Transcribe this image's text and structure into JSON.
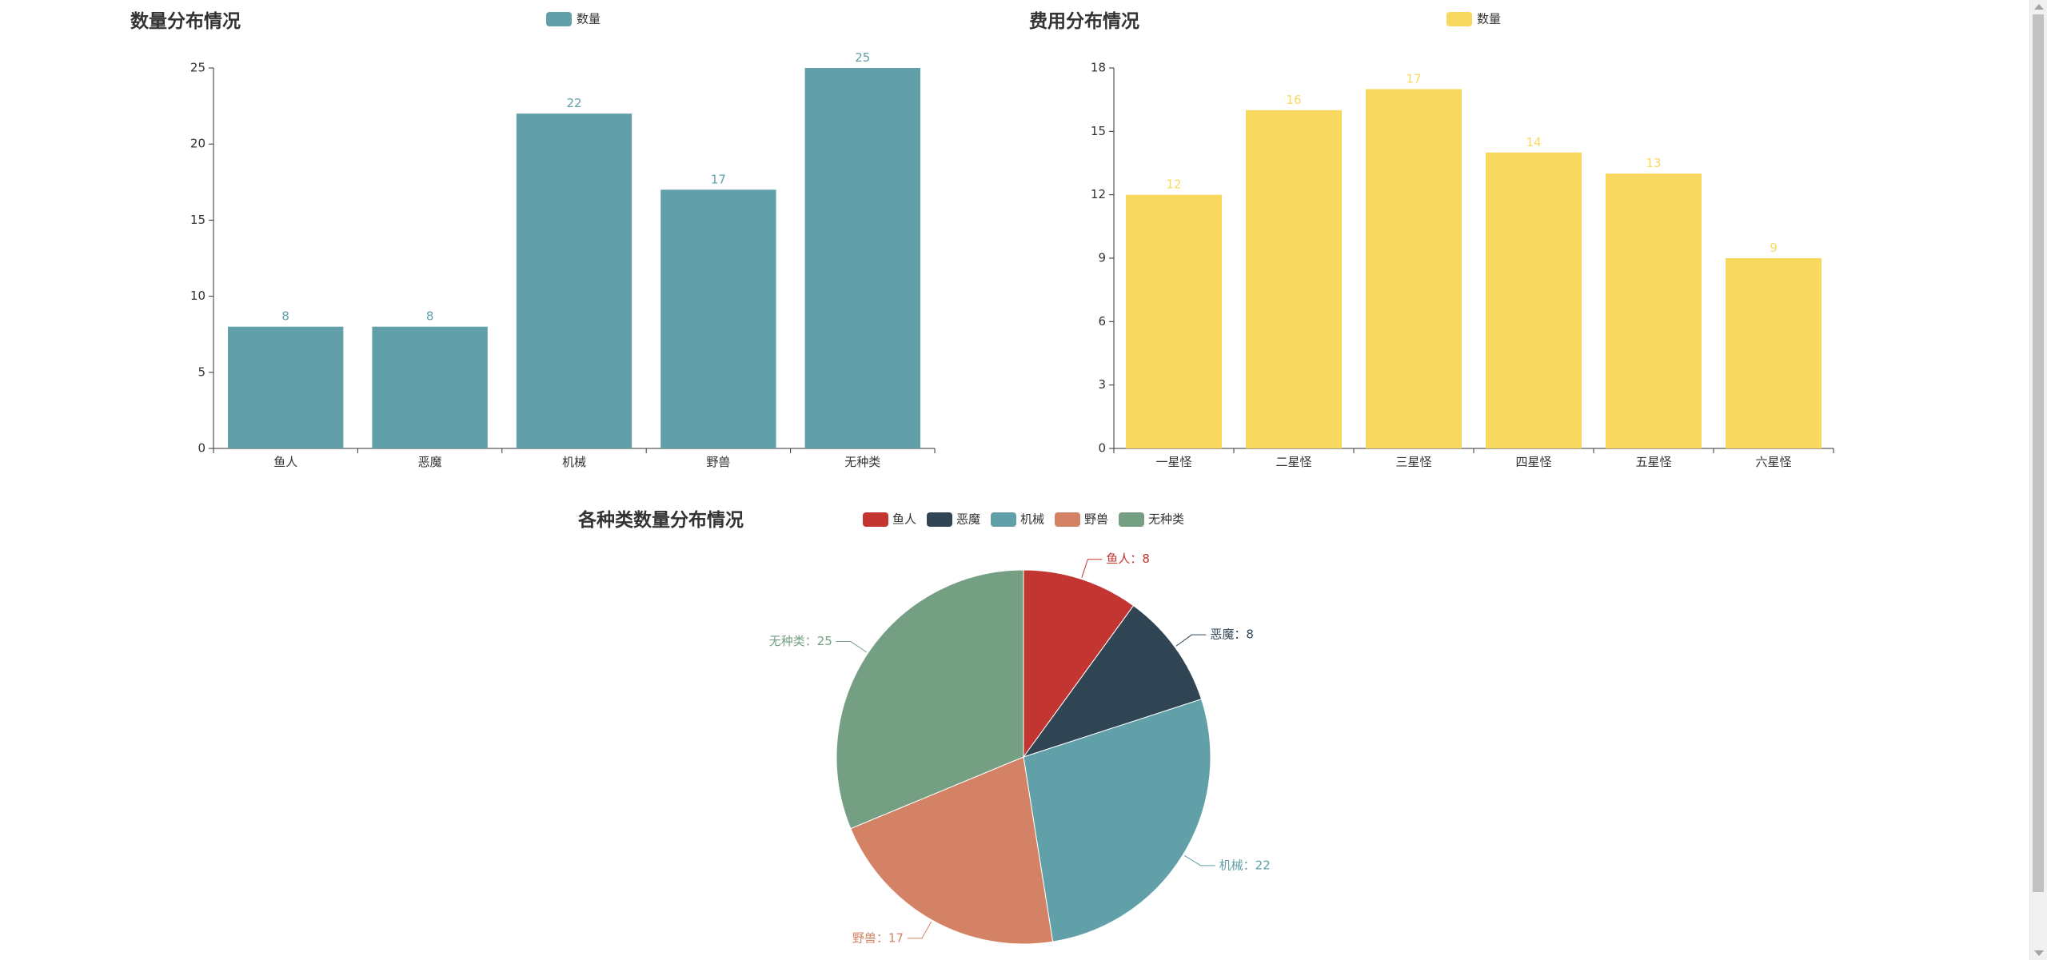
{
  "chart_data": [
    {
      "id": "count",
      "type": "bar",
      "title": "数量分布情况",
      "legend": [
        "数量"
      ],
      "categories": [
        "鱼人",
        "恶魔",
        "机械",
        "野兽",
        "无种类"
      ],
      "values": [
        8,
        8,
        22,
        17,
        25
      ],
      "yticks": [
        0,
        5,
        10,
        15,
        20,
        25
      ],
      "ylim": [
        0,
        25
      ],
      "color": "#61a0a8",
      "grid": false,
      "legend_position": "top-center"
    },
    {
      "id": "cost",
      "type": "bar",
      "title": "费用分布情况",
      "legend": [
        "数量"
      ],
      "categories": [
        "一星怪",
        "二星怪",
        "三星怪",
        "四星怪",
        "五星怪",
        "六星怪"
      ],
      "values": [
        12,
        16,
        17,
        14,
        13,
        9
      ],
      "yticks": [
        0,
        3,
        6,
        9,
        12,
        15,
        18
      ],
      "ylim": [
        0,
        18
      ],
      "color": "#f9d860",
      "grid": false,
      "legend_position": "top-center"
    },
    {
      "id": "pie",
      "type": "pie",
      "title": "各种类数量分布情况",
      "legend": [
        "鱼人",
        "恶魔",
        "机械",
        "野兽",
        "无种类"
      ],
      "categories": [
        "鱼人",
        "恶魔",
        "机械",
        "野兽",
        "无种类"
      ],
      "values": [
        8,
        8,
        22,
        17,
        25
      ],
      "colors": [
        "#c23531",
        "#2f4554",
        "#61a0a8",
        "#d48265",
        "#749f83"
      ],
      "label_separator": "：",
      "legend_position": "top-center"
    }
  ]
}
